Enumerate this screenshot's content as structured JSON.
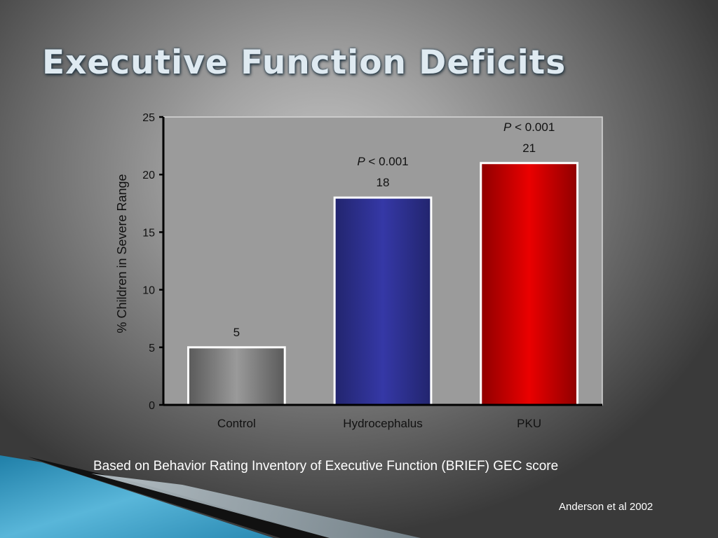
{
  "slide": {
    "title": "Executive Function Deficits",
    "caption": "Based on Behavior Rating Inventory of Executive Function (BRIEF) GEC score",
    "citation": "Anderson et al 2002"
  },
  "chart_data": {
    "type": "bar",
    "categories": [
      "Control",
      "Hydrocephalus",
      "PKU"
    ],
    "values": [
      5,
      18,
      21
    ],
    "data_labels": [
      "5",
      "18",
      "21"
    ],
    "annotations": [
      {
        "category": "Hydrocephalus",
        "italic": "P",
        "text": " < 0.001"
      },
      {
        "category": "PKU",
        "italic": "P",
        "text": " < 0.001"
      }
    ],
    "title": "",
    "xlabel": "",
    "ylabel": "% Children in Severe Range",
    "ylim": [
      0,
      25
    ],
    "yticks": [
      0,
      5,
      10,
      15,
      20,
      25
    ],
    "colors": [
      "#7a7a7a",
      "#2e3192",
      "#d40000"
    ],
    "grid": false,
    "legend": "none"
  }
}
